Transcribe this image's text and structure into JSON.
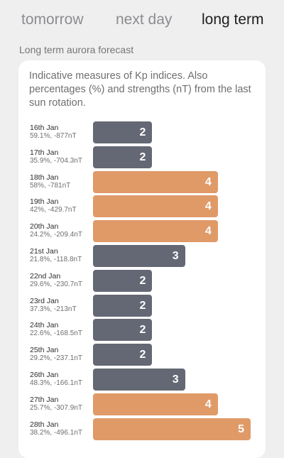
{
  "tabs": [
    {
      "label": "tomorrow",
      "active": false
    },
    {
      "label": "next day",
      "active": false
    },
    {
      "label": "long term",
      "active": true
    }
  ],
  "section_title": "Long term aurora forecast",
  "description": "Indicative measures of Kp indices. Also percentages (%) and strengths (nT) from the last sun rotation.",
  "kp_scale_max": 5,
  "colors": {
    "low": "#646874",
    "high": "#e09a68"
  },
  "forecast": [
    {
      "date": "16th Jan",
      "stats": "59.1%, -877nT",
      "kp": 2,
      "level": "low"
    },
    {
      "date": "17th Jan",
      "stats": "35.9%, -704.3nT",
      "kp": 2,
      "level": "low"
    },
    {
      "date": "18th Jan",
      "stats": "58%, -781nT",
      "kp": 4,
      "level": "high"
    },
    {
      "date": "19th Jan",
      "stats": "42%, -429.7nT",
      "kp": 4,
      "level": "high"
    },
    {
      "date": "20th Jan",
      "stats": "24.2%, -209.4nT",
      "kp": 4,
      "level": "high"
    },
    {
      "date": "21st Jan",
      "stats": "21.8%, -118.8nT",
      "kp": 3,
      "level": "low"
    },
    {
      "date": "22nd Jan",
      "stats": "29.6%, -230.7nT",
      "kp": 2,
      "level": "low"
    },
    {
      "date": "23rd Jan",
      "stats": "37.3%, -213nT",
      "kp": 2,
      "level": "low"
    },
    {
      "date": "24th Jan",
      "stats": "22.6%, -168.5nT",
      "kp": 2,
      "level": "low"
    },
    {
      "date": "25th Jan",
      "stats": "29.2%, -237.1nT",
      "kp": 2,
      "level": "low"
    },
    {
      "date": "26th Jan",
      "stats": "48.3%, -166.1nT",
      "kp": 3,
      "level": "low"
    },
    {
      "date": "27th Jan",
      "stats": "25.7%, -307.9nT",
      "kp": 4,
      "level": "high"
    },
    {
      "date": "28th Jan",
      "stats": "38.2%, -496.1nT",
      "kp": 5,
      "level": "high"
    }
  ]
}
